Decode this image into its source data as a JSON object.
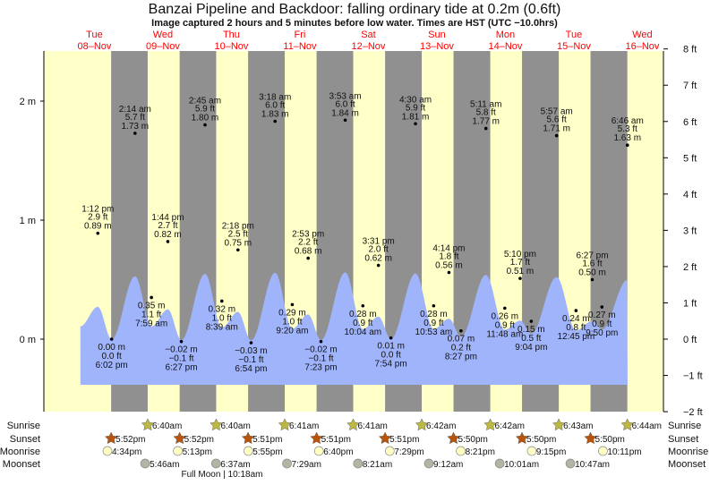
{
  "chart_data": {
    "type": "area",
    "title": "Banzai Pipeline and Backdoor: falling  ordinary tide at 0.2m (0.6ft)",
    "subtitle": "Image captured 2 hours and 5 minutes before low water. Times are HST (UTC −10.0hrs)",
    "days": [
      {
        "dow": "Tue",
        "date": "08–Nov"
      },
      {
        "dow": "Wed",
        "date": "09–Nov"
      },
      {
        "dow": "Thu",
        "date": "10–Nov"
      },
      {
        "dow": "Fri",
        "date": "11–Nov"
      },
      {
        "dow": "Sat",
        "date": "12–Nov"
      },
      {
        "dow": "Sun",
        "date": "13–Nov"
      },
      {
        "dow": "Mon",
        "date": "14–Nov"
      },
      {
        "dow": "Tue",
        "date": "15–Nov"
      },
      {
        "dow": "Wed",
        "date": "16–Nov"
      }
    ],
    "y_left_ticks": [
      {
        "v": 2,
        "label": "2 m"
      },
      {
        "v": 1,
        "label": "1 m"
      },
      {
        "v": 0,
        "label": "0 m"
      }
    ],
    "y_right_ticks": [
      {
        "v": 8,
        "label": "8 ft"
      },
      {
        "v": 7,
        "label": "7 ft"
      },
      {
        "v": 6,
        "label": "6 ft"
      },
      {
        "v": 5,
        "label": "5 ft"
      },
      {
        "v": 4,
        "label": "4 ft"
      },
      {
        "v": 3,
        "label": "3 ft"
      },
      {
        "v": 2,
        "label": "2 ft"
      },
      {
        "v": 1,
        "label": "1 ft"
      },
      {
        "v": 0,
        "label": "0 ft"
      },
      {
        "v": -1,
        "label": "−1 ft"
      },
      {
        "v": -2,
        "label": "−2 ft"
      }
    ],
    "ylim_m": [
      -0.61,
      2.44
    ],
    "extremes": [
      {
        "day": 0,
        "time": "1:12 pm",
        "ft": "2.9 ft",
        "m": "0.89 m",
        "value": 0.89,
        "type": "high"
      },
      {
        "day": 0,
        "time": "6:02 pm",
        "ft": "0.0 ft",
        "m": "0.00 m",
        "value": 0.0,
        "type": "low"
      },
      {
        "day": 1,
        "time": "2:14 am",
        "ft": "5.7 ft",
        "m": "1.73 m",
        "value": 1.73,
        "type": "high"
      },
      {
        "day": 1,
        "time": "7:59 am",
        "ft": "1.1 ft",
        "m": "0.35 m",
        "value": 0.35,
        "type": "low"
      },
      {
        "day": 1,
        "time": "1:44 pm",
        "ft": "2.7 ft",
        "m": "0.82 m",
        "value": 0.82,
        "type": "high"
      },
      {
        "day": 1,
        "time": "6:27 pm",
        "ft": "−0.1 ft",
        "m": "−0.02 m",
        "value": -0.02,
        "type": "low"
      },
      {
        "day": 2,
        "time": "2:45 am",
        "ft": "5.9 ft",
        "m": "1.80 m",
        "value": 1.8,
        "type": "high"
      },
      {
        "day": 2,
        "time": "8:39 am",
        "ft": "1.0 ft",
        "m": "0.32 m",
        "value": 0.32,
        "type": "low"
      },
      {
        "day": 2,
        "time": "2:18 pm",
        "ft": "2.5 ft",
        "m": "0.75 m",
        "value": 0.75,
        "type": "high"
      },
      {
        "day": 2,
        "time": "6:54 pm",
        "ft": "−0.1 ft",
        "m": "−0.03 m",
        "value": -0.03,
        "type": "low"
      },
      {
        "day": 3,
        "time": "3:18 am",
        "ft": "6.0 ft",
        "m": "1.83 m",
        "value": 1.83,
        "type": "high"
      },
      {
        "day": 3,
        "time": "9:20 am",
        "ft": "1.0 ft",
        "m": "0.29 m",
        "value": 0.29,
        "type": "low"
      },
      {
        "day": 3,
        "time": "2:53 pm",
        "ft": "2.2 ft",
        "m": "0.68 m",
        "value": 0.68,
        "type": "high"
      },
      {
        "day": 3,
        "time": "7:23 pm",
        "ft": "−0.1 ft",
        "m": "−0.02 m",
        "value": -0.02,
        "type": "low"
      },
      {
        "day": 4,
        "time": "3:53 am",
        "ft": "6.0 ft",
        "m": "1.84 m",
        "value": 1.84,
        "type": "high"
      },
      {
        "day": 4,
        "time": "10:04 am",
        "ft": "0.9 ft",
        "m": "0.28 m",
        "value": 0.28,
        "type": "low"
      },
      {
        "day": 4,
        "time": "3:31 pm",
        "ft": "2.0 ft",
        "m": "0.62 m",
        "value": 0.62,
        "type": "high"
      },
      {
        "day": 4,
        "time": "7:54 pm",
        "ft": "0.0 ft",
        "m": "0.01 m",
        "value": 0.01,
        "type": "low"
      },
      {
        "day": 5,
        "time": "4:30 am",
        "ft": "5.9 ft",
        "m": "1.81 m",
        "value": 1.81,
        "type": "high"
      },
      {
        "day": 5,
        "time": "10:53 am",
        "ft": "0.9 ft",
        "m": "0.28 m",
        "value": 0.28,
        "type": "low"
      },
      {
        "day": 5,
        "time": "4:14 pm",
        "ft": "1.8 ft",
        "m": "0.56 m",
        "value": 0.56,
        "type": "high"
      },
      {
        "day": 5,
        "time": "8:27 pm",
        "ft": "0.2 ft",
        "m": "0.07 m",
        "value": 0.07,
        "type": "low"
      },
      {
        "day": 6,
        "time": "5:11 am",
        "ft": "5.8 ft",
        "m": "1.77 m",
        "value": 1.77,
        "type": "high"
      },
      {
        "day": 6,
        "time": "11:48 am",
        "ft": "0.9 ft",
        "m": "0.26 m",
        "value": 0.26,
        "type": "low"
      },
      {
        "day": 6,
        "time": "5:10 pm",
        "ft": "1.7 ft",
        "m": "0.51 m",
        "value": 0.51,
        "type": "high"
      },
      {
        "day": 6,
        "time": "9:04 pm",
        "ft": "0.5 ft",
        "m": "0.15 m",
        "value": 0.15,
        "type": "low"
      },
      {
        "day": 7,
        "time": "5:57 am",
        "ft": "5.6 ft",
        "m": "1.71 m",
        "value": 1.71,
        "type": "high"
      },
      {
        "day": 7,
        "time": "12:45 pm",
        "ft": "0.8 ft",
        "m": "0.24 m",
        "value": 0.24,
        "type": "low"
      },
      {
        "day": 7,
        "time": "6:27 pm",
        "ft": "1.6 ft",
        "m": "0.50 m",
        "value": 0.5,
        "type": "high"
      },
      {
        "day": 7,
        "time": "9:50 pm",
        "ft": "0.9 ft",
        "m": "0.27 m",
        "value": 0.27,
        "type": "low"
      },
      {
        "day": 8,
        "time": "6:46 am",
        "ft": "5.3 ft",
        "m": "1.63 m",
        "value": 1.63,
        "type": "high"
      }
    ],
    "rows": {
      "sunrise": {
        "label": "Sunrise",
        "events": [
          {
            "day": 1,
            "time": "6:40am"
          },
          {
            "day": 2,
            "time": "6:40am"
          },
          {
            "day": 3,
            "time": "6:41am"
          },
          {
            "day": 4,
            "time": "6:41am"
          },
          {
            "day": 5,
            "time": "6:42am"
          },
          {
            "day": 6,
            "time": "6:42am"
          },
          {
            "day": 7,
            "time": "6:43am"
          },
          {
            "day": 8,
            "time": "6:44am"
          }
        ]
      },
      "sunset": {
        "label": "Sunset",
        "events": [
          {
            "day": 0,
            "time": "5:52pm"
          },
          {
            "day": 1,
            "time": "5:52pm"
          },
          {
            "day": 2,
            "time": "5:51pm"
          },
          {
            "day": 3,
            "time": "5:51pm"
          },
          {
            "day": 4,
            "time": "5:51pm"
          },
          {
            "day": 5,
            "time": "5:50pm"
          },
          {
            "day": 6,
            "time": "5:50pm"
          },
          {
            "day": 7,
            "time": "5:50pm"
          }
        ]
      },
      "moonrise": {
        "label": "Moonrise",
        "events": [
          {
            "day": 0,
            "time": "4:34pm"
          },
          {
            "day": 1,
            "time": "5:13pm"
          },
          {
            "day": 2,
            "time": "5:55pm"
          },
          {
            "day": 3,
            "time": "6:40pm"
          },
          {
            "day": 4,
            "time": "7:29pm"
          },
          {
            "day": 5,
            "time": "8:21pm"
          },
          {
            "day": 6,
            "time": "9:15pm"
          },
          {
            "day": 7,
            "time": "10:11pm"
          }
        ]
      },
      "moonset": {
        "label": "Moonset",
        "events": [
          {
            "day": 1,
            "time": "5:46am"
          },
          {
            "day": 2,
            "time": "6:37am"
          },
          {
            "day": 3,
            "time": "7:29am"
          },
          {
            "day": 4,
            "time": "8:21am"
          },
          {
            "day": 5,
            "time": "9:12am"
          },
          {
            "day": 6,
            "time": "10:01am"
          },
          {
            "day": 7,
            "time": "10:47am"
          }
        ]
      }
    },
    "moon_phase": "Full Moon | 10:18am"
  },
  "colors": {
    "day": "#ffffc8",
    "night": "#909090",
    "water": "#a0b4fc",
    "sunrise": "#bdb843",
    "sunset": "#b8540e",
    "moonrise": "#ffffc4",
    "moonset": "#b4b4a4",
    "daylabel": "#ff0000"
  }
}
